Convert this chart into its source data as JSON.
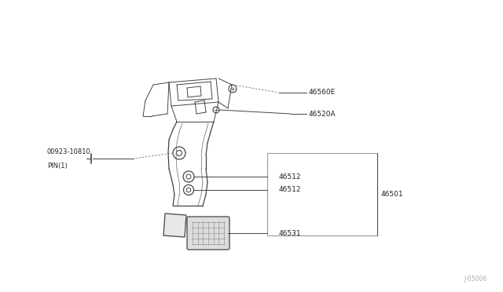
{
  "bg_color": "#ffffff",
  "line_color": "#444444",
  "text_color": "#222222",
  "fig_width": 6.4,
  "fig_height": 3.72,
  "dpi": 100,
  "watermark": "J-65006",
  "label_46560E": "46560E",
  "label_46520A": "46520A",
  "label_pin": "00923-10810",
  "label_pin2": "PIN(1)",
  "label_46512a": "46512",
  "label_46512b": "46512",
  "label_46501": "46501",
  "label_46531": "46531",
  "font_size": 6.5,
  "font_size_small": 5.5
}
